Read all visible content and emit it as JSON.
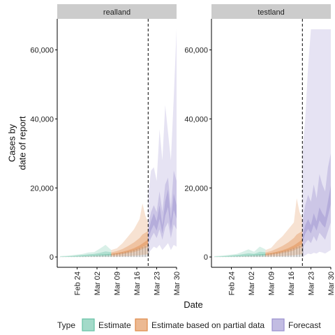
{
  "chart_data": {
    "type": "area",
    "xlabel": "Date",
    "ylabel": "Cases by\ndate of report",
    "x_range": [
      "2020-02-17",
      "2020-03-30"
    ],
    "ylim": [
      -3000,
      69000
    ],
    "y_ticks": [
      0,
      20000,
      40000,
      60000
    ],
    "y_tick_labels": [
      "0",
      "20,000",
      "40,000",
      "60,000"
    ],
    "x_ticks": [
      "2020-02-24",
      "2020-03-02",
      "2020-03-09",
      "2020-03-16",
      "2020-03-23",
      "2020-03-30"
    ],
    "x_tick_labels": [
      "Feb 24",
      "Mar 02",
      "Mar 09",
      "Mar 16",
      "Mar 23",
      "Mar 30"
    ],
    "vline_date": "2020-03-20",
    "legend": {
      "title": "Type",
      "position": "bottom",
      "items": [
        {
          "label": "Estimate",
          "color": "#66c2a5"
        },
        {
          "label": "Estimate based on partial data",
          "color": "#e08a4a"
        },
        {
          "label": "Forecast",
          "color": "#9a8fcf"
        }
      ]
    },
    "colors": {
      "estimate": "#66c2a5",
      "partial": "#e08a4a",
      "forecast": "#9a8fcf",
      "bars": "#b8b8b8",
      "strip": "#cccccc"
    },
    "panels": [
      {
        "name": "realland",
        "series": [
          {
            "type": "Estimate",
            "dates": [
              "2020-02-18",
              "2020-02-20",
              "2020-02-22",
              "2020-02-24",
              "2020-02-26",
              "2020-02-28",
              "2020-03-01",
              "2020-03-03",
              "2020-03-05",
              "2020-03-07"
            ],
            "median": [
              60,
              100,
              160,
              250,
              350,
              480,
              560,
              650,
              720,
              800
            ],
            "lower90": [
              0,
              0,
              0,
              0,
              0,
              40,
              60,
              80,
              100,
              120
            ],
            "upper90": [
              250,
              350,
              500,
              700,
              900,
              1300,
              1400,
              2400,
              3500,
              2000
            ],
            "lower50": [
              20,
              40,
              70,
              120,
              180,
              250,
              300,
              360,
              400,
              450
            ],
            "upper50": [
              120,
              180,
              280,
              420,
              560,
              750,
              900,
              1200,
              1600,
              1400
            ]
          },
          {
            "type": "Estimate based on partial data",
            "dates": [
              "2020-03-07",
              "2020-03-09",
              "2020-03-11",
              "2020-03-13",
              "2020-03-15",
              "2020-03-17",
              "2020-03-18",
              "2020-03-19",
              "2020-03-20"
            ],
            "median": [
              800,
              1000,
              1300,
              1700,
              2200,
              2900,
              3400,
              3900,
              4400
            ],
            "lower90": [
              120,
              150,
              200,
              280,
              380,
              500,
              620,
              700,
              800
            ],
            "upper90": [
              2000,
              2500,
              4000,
              6000,
              8000,
              11000,
              15500,
              12000,
              10000
            ],
            "lower50": [
              450,
              600,
              800,
              1100,
              1400,
              1900,
              2300,
              2600,
              2900
            ],
            "upper50": [
              1300,
              1700,
              2300,
              3200,
              4200,
              5500,
              6500,
              7000,
              7500
            ]
          },
          {
            "type": "Forecast",
            "dates": [
              "2020-03-20",
              "2020-03-21",
              "2020-03-22",
              "2020-03-23",
              "2020-03-24",
              "2020-03-25",
              "2020-03-26",
              "2020-03-27",
              "2020-03-28",
              "2020-03-29",
              "2020-03-30"
            ],
            "median": [
              6000,
              9000,
              11000,
              9000,
              13000,
              8000,
              14000,
              17000,
              9000,
              16000,
              13000
            ],
            "lower90": [
              1000,
              2000,
              3000,
              2500,
              3500,
              2000,
              3000,
              4000,
              2000,
              3500,
              3000
            ],
            "upper90": [
              18000,
              25000,
              26000,
              22000,
              37000,
              28000,
              44000,
              36000,
              28000,
              46000,
              66000
            ],
            "lower50": [
              3500,
              5500,
              7000,
              5500,
              8000,
              5000,
              8500,
              10000,
              5500,
              9500,
              8000
            ],
            "upper50": [
              9000,
              13000,
              15000,
              13000,
              19000,
              13000,
              21000,
              23000,
              14000,
              25000,
              22000
            ]
          }
        ],
        "bars": {
          "dates": [
            "2020-02-18",
            "2020-02-19",
            "2020-02-20",
            "2020-02-21",
            "2020-02-22",
            "2020-02-23",
            "2020-02-24",
            "2020-02-25",
            "2020-02-26",
            "2020-02-27",
            "2020-02-28",
            "2020-02-29",
            "2020-03-01",
            "2020-03-02",
            "2020-03-03",
            "2020-03-04",
            "2020-03-05",
            "2020-03-06",
            "2020-03-07",
            "2020-03-08",
            "2020-03-09",
            "2020-03-10",
            "2020-03-11",
            "2020-03-12",
            "2020-03-13",
            "2020-03-14",
            "2020-03-15",
            "2020-03-16",
            "2020-03-17",
            "2020-03-18",
            "2020-03-19",
            "2020-03-20"
          ],
          "values": [
            30,
            40,
            50,
            60,
            80,
            100,
            120,
            150,
            190,
            230,
            280,
            330,
            400,
            460,
            530,
            600,
            680,
            760,
            850,
            950,
            1050,
            1180,
            1320,
            1480,
            1650,
            1850,
            2080,
            2330,
            2600,
            2900,
            3200,
            3500
          ]
        }
      },
      {
        "name": "testland",
        "series": [
          {
            "type": "Estimate",
            "dates": [
              "2020-02-18",
              "2020-02-20",
              "2020-02-22",
              "2020-02-24",
              "2020-02-26",
              "2020-02-28",
              "2020-03-01",
              "2020-03-03",
              "2020-03-05",
              "2020-03-07"
            ],
            "median": [
              60,
              100,
              160,
              250,
              350,
              480,
              560,
              650,
              720,
              800
            ],
            "lower90": [
              0,
              0,
              0,
              0,
              0,
              40,
              60,
              80,
              100,
              120
            ],
            "upper90": [
              250,
              350,
              500,
              700,
              900,
              1500,
              2200,
              1500,
              3000,
              2200
            ],
            "lower50": [
              20,
              40,
              70,
              120,
              180,
              250,
              300,
              360,
              400,
              450
            ],
            "upper50": [
              120,
              180,
              280,
              420,
              560,
              800,
              1100,
              900,
              1500,
              1400
            ]
          },
          {
            "type": "Estimate based on partial data",
            "dates": [
              "2020-03-07",
              "2020-03-09",
              "2020-03-11",
              "2020-03-13",
              "2020-03-15",
              "2020-03-17",
              "2020-03-18",
              "2020-03-19",
              "2020-03-20"
            ],
            "median": [
              800,
              1000,
              1300,
              1700,
              2200,
              2900,
              3400,
              3900,
              4400
            ],
            "lower90": [
              120,
              150,
              200,
              280,
              380,
              500,
              620,
              700,
              800
            ],
            "upper90": [
              2000,
              2600,
              4500,
              6000,
              8000,
              10000,
              17000,
              13000,
              11000
            ],
            "lower50": [
              450,
              600,
              800,
              1100,
              1400,
              1900,
              2300,
              2600,
              2900
            ],
            "upper50": [
              1300,
              1700,
              2400,
              3200,
              4200,
              5500,
              6500,
              7000,
              7500
            ]
          },
          {
            "type": "Forecast",
            "dates": [
              "2020-03-20",
              "2020-03-21",
              "2020-03-22",
              "2020-03-23",
              "2020-03-24",
              "2020-03-25",
              "2020-03-26",
              "2020-03-27",
              "2020-03-28",
              "2020-03-29",
              "2020-03-30"
            ],
            "median": [
              5000,
              8000,
              9500,
              8000,
              11000,
              9000,
              12500,
              11000,
              10000,
              14000,
              18000
            ],
            "lower90": [
              0,
              500,
              1000,
              800,
              1200,
              1000,
              1500,
              1300,
              1000,
              1500,
              2000
            ],
            "upper90": [
              30000,
              40000,
              55000,
              66000,
              66000,
              66000,
              66000,
              66000,
              66000,
              66000,
              66000
            ],
            "lower50": [
              2500,
              4000,
              5000,
              4000,
              6000,
              4500,
              7000,
              6000,
              5000,
              7500,
              10000
            ],
            "upper50": [
              10000,
              15000,
              18000,
              16000,
              21000,
              17000,
              24000,
              21000,
              19000,
              26000,
              30000
            ]
          }
        ],
        "bars": {
          "dates": [
            "2020-02-18",
            "2020-02-19",
            "2020-02-20",
            "2020-02-21",
            "2020-02-22",
            "2020-02-23",
            "2020-02-24",
            "2020-02-25",
            "2020-02-26",
            "2020-02-27",
            "2020-02-28",
            "2020-02-29",
            "2020-03-01",
            "2020-03-02",
            "2020-03-03",
            "2020-03-04",
            "2020-03-05",
            "2020-03-06",
            "2020-03-07",
            "2020-03-08",
            "2020-03-09",
            "2020-03-10",
            "2020-03-11",
            "2020-03-12",
            "2020-03-13",
            "2020-03-14",
            "2020-03-15",
            "2020-03-16",
            "2020-03-17",
            "2020-03-18",
            "2020-03-19",
            "2020-03-20"
          ],
          "values": [
            30,
            40,
            50,
            60,
            80,
            100,
            120,
            150,
            190,
            230,
            280,
            330,
            400,
            460,
            530,
            600,
            680,
            760,
            850,
            950,
            1050,
            1180,
            1320,
            1480,
            1650,
            1850,
            2080,
            2330,
            2600,
            2900,
            3200,
            3500
          ]
        }
      }
    ]
  }
}
